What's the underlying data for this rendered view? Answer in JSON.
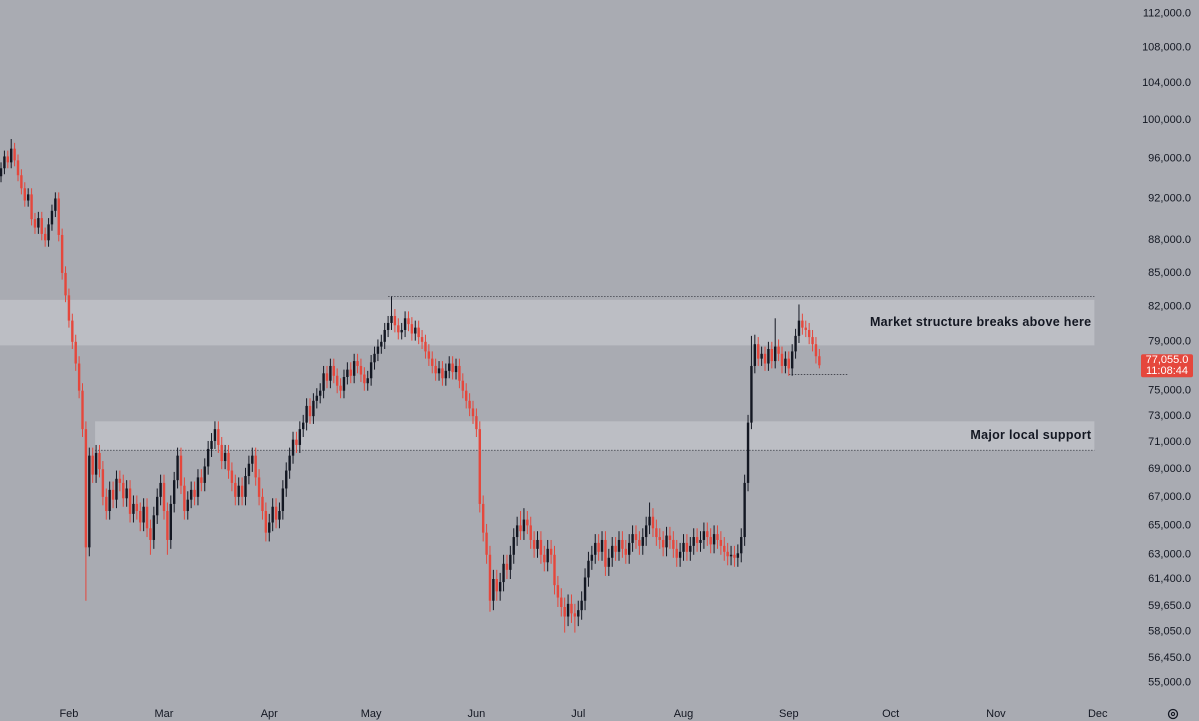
{
  "chart_data": {
    "type": "candlestick",
    "log_scale": true,
    "background": "#a9abb2",
    "up_color": "#131722",
    "down_color": "#e5473c",
    "zone_color": "#bcbec4",
    "x": [
      12,
      13,
      14,
      15,
      16,
      17,
      18,
      19,
      20,
      21,
      22,
      23,
      24,
      25,
      26,
      27,
      28,
      29,
      30,
      31,
      32,
      33,
      34,
      35,
      36,
      37,
      38,
      39,
      40,
      41,
      42,
      43,
      44,
      45,
      46,
      47,
      48,
      49,
      50,
      51,
      52,
      53,
      54,
      55,
      56,
      57,
      58,
      59,
      60,
      61,
      62,
      63,
      64,
      65,
      66,
      67,
      68,
      69,
      70,
      71,
      72,
      73,
      74,
      75,
      76,
      77,
      78,
      79,
      80,
      81,
      82,
      83,
      84,
      85,
      86,
      87,
      88,
      89,
      90,
      91,
      92,
      93,
      94,
      95,
      96,
      97,
      98,
      99,
      100,
      101,
      102,
      103,
      104,
      105,
      106,
      107,
      108,
      109,
      110,
      111,
      112,
      113,
      114,
      115,
      116,
      117,
      118,
      119,
      120,
      121,
      122,
      123,
      124,
      125,
      126,
      127,
      128,
      129,
      130,
      131,
      132,
      133,
      134,
      135,
      136,
      137,
      138,
      139,
      140,
      141,
      142,
      143,
      144,
      145,
      146,
      147,
      148,
      149,
      150,
      151,
      152,
      153,
      154,
      155,
      156,
      157,
      158,
      159,
      160,
      161,
      162,
      163,
      164,
      165,
      166,
      167,
      168,
      169,
      170,
      171,
      172,
      173,
      174,
      175,
      176,
      177,
      178,
      179,
      180,
      181,
      182,
      183,
      184,
      185,
      186,
      187,
      188,
      189,
      190,
      191,
      192,
      193,
      194,
      195,
      196,
      197,
      198,
      199,
      200,
      201,
      202,
      203,
      204,
      205,
      206,
      207,
      208,
      209,
      210,
      211,
      212,
      213,
      214,
      215,
      216,
      217,
      218,
      219,
      220,
      221,
      222,
      223,
      224,
      225,
      226,
      227,
      228,
      229,
      230,
      231,
      232,
      233,
      234,
      235,
      236,
      237,
      238,
      239,
      240,
      241,
      242,
      243,
      244,
      245,
      246,
      247,
      248,
      249,
      250,
      251,
      252,
      253
    ],
    "open": [
      94200,
      95000,
      96200,
      95600,
      97000,
      95800,
      94300,
      93000,
      91800,
      92400,
      90000,
      89200,
      90100,
      88600,
      88000,
      89500,
      90800,
      92000,
      88500,
      85000,
      83000,
      80800,
      79000,
      77200,
      75000,
      72000,
      63500,
      70000,
      68600,
      70200,
      69000,
      67000,
      66000,
      67500,
      66800,
      68300,
      68000,
      66900,
      67600,
      65800,
      66500,
      66000,
      65200,
      66300,
      64800,
      64000,
      65700,
      67000,
      68000,
      66000,
      64000,
      66500,
      68200,
      70000,
      67800,
      66000,
      66800,
      67500,
      67000,
      68400,
      68000,
      69200,
      70500,
      71100,
      72000,
      70800,
      69600,
      70200,
      68900,
      68000,
      67000,
      67800,
      67000,
      68500,
      69400,
      70000,
      68400,
      67000,
      66000,
      64500,
      65200,
      66300,
      65400,
      66000,
      67600,
      68900,
      70000,
      71200,
      70800,
      72000,
      72500,
      73800,
      73000,
      74200,
      74600,
      75000,
      76400,
      75800,
      77000,
      76200,
      75400,
      75000,
      76100,
      76700,
      76200,
      77400,
      77000,
      76300,
      75600,
      76000,
      77300,
      78000,
      78600,
      79000,
      80000,
      80600,
      81200,
      80400,
      79800,
      80000,
      81000,
      80500,
      79700,
      80200,
      79400,
      79000,
      78200,
      77600,
      77000,
      76400,
      76800,
      76000,
      76600,
      77200,
      76500,
      77000,
      75800,
      75000,
      74200,
      73600,
      73000,
      72000,
      66500,
      64500,
      63000,
      60000,
      61400,
      60600,
      61200,
      62400,
      62000,
      63000,
      64200,
      65000,
      64600,
      65400,
      65000,
      64000,
      63400,
      64000,
      63000,
      62500,
      63400,
      63000,
      61000,
      60200,
      59600,
      59000,
      59800,
      59200,
      59000,
      59400,
      60000,
      61500,
      62600,
      63000,
      63800,
      63200,
      64000,
      62200,
      62800,
      63600,
      63200,
      64000,
      63400,
      63000,
      63800,
      64400,
      64000,
      63600,
      64200,
      65000,
      65600,
      64800,
      64200,
      64000,
      63500,
      64300,
      64000,
      63400,
      62800,
      63200,
      63800,
      63200,
      63600,
      64200,
      63800,
      64000,
      64600,
      64200,
      63700,
      64400,
      64000,
      63600,
      63200,
      62900,
      63000,
      62800,
      63100,
      64200,
      68000,
      72500,
      77000,
      78800,
      77600,
      78000,
      77200,
      78400,
      77400,
      78600,
      78000,
      77000,
      77600,
      76800,
      78200,
      79500,
      80800,
      80200,
      80000,
      79400,
      78800,
      77800
    ],
    "high": [
      95600,
      96800,
      96800,
      98000,
      97600,
      96400,
      94900,
      93600,
      93000,
      93000,
      90600,
      90700,
      90700,
      89200,
      90100,
      91400,
      92600,
      92600,
      89100,
      85600,
      83600,
      81400,
      79600,
      77800,
      75600,
      72600,
      70600,
      70600,
      70800,
      70800,
      69600,
      67600,
      68100,
      68100,
      68900,
      68900,
      68600,
      68200,
      68200,
      67100,
      67100,
      66600,
      66900,
      66900,
      65400,
      66300,
      67600,
      68600,
      68600,
      66600,
      67100,
      68800,
      70600,
      70600,
      68400,
      67400,
      68100,
      68100,
      69000,
      69000,
      69800,
      71100,
      71700,
      72600,
      72600,
      71400,
      70800,
      70800,
      69500,
      68600,
      68400,
      68400,
      69100,
      70000,
      70600,
      70600,
      69000,
      67600,
      66600,
      65800,
      66900,
      66900,
      66600,
      68200,
      69500,
      70600,
      71800,
      71800,
      72600,
      73100,
      74400,
      74400,
      74800,
      75200,
      75600,
      77000,
      77000,
      77600,
      77600,
      76800,
      76000,
      76700,
      77300,
      77300,
      78000,
      78000,
      77600,
      76900,
      76600,
      77900,
      78600,
      79200,
      79600,
      80600,
      81200,
      82900,
      81800,
      81000,
      80600,
      81600,
      81600,
      81100,
      80800,
      80800,
      80000,
      79600,
      78800,
      78200,
      77600,
      77400,
      77400,
      77200,
      77800,
      77800,
      77600,
      77600,
      76400,
      75600,
      74800,
      74200,
      73600,
      72600,
      67100,
      65100,
      63600,
      62000,
      62000,
      61800,
      63000,
      63000,
      63600,
      64800,
      65600,
      66000,
      66200,
      66000,
      65600,
      64600,
      64600,
      64600,
      63600,
      64000,
      64000,
      63600,
      61600,
      60800,
      60200,
      60400,
      60400,
      59800,
      60000,
      60600,
      62100,
      63200,
      63600,
      64400,
      64400,
      64600,
      64600,
      63400,
      64200,
      64200,
      64600,
      64600,
      64000,
      64400,
      65000,
      65000,
      64600,
      64800,
      65600,
      66600,
      66200,
      65400,
      64800,
      64600,
      64900,
      64900,
      64600,
      64000,
      63800,
      64400,
      64400,
      64200,
      64800,
      64800,
      64600,
      65200,
      65200,
      64800,
      65000,
      65000,
      64600,
      64200,
      63800,
      63600,
      63600,
      63700,
      64800,
      68600,
      73100,
      79500,
      79600,
      79400,
      78600,
      78600,
      79000,
      79000,
      81000,
      79200,
      78600,
      78200,
      78200,
      78800,
      80100,
      82200,
      81400,
      80800,
      80600,
      80000,
      79400,
      78400
    ],
    "low": [
      93600,
      94400,
      95000,
      95000,
      95200,
      93700,
      92400,
      91200,
      91200,
      89400,
      88600,
      88600,
      88000,
      87400,
      87400,
      88900,
      90200,
      87900,
      84400,
      82400,
      80200,
      78400,
      76600,
      74400,
      71400,
      60000,
      62900,
      68000,
      68000,
      68400,
      66400,
      65400,
      65400,
      66200,
      66200,
      67400,
      66300,
      66300,
      65200,
      65200,
      65400,
      64600,
      64600,
      64200,
      63000,
      63400,
      65100,
      66400,
      65400,
      63000,
      63400,
      65900,
      67600,
      67200,
      65400,
      65400,
      66200,
      66400,
      66400,
      67400,
      67400,
      68600,
      69900,
      70500,
      70200,
      69000,
      69000,
      68300,
      67400,
      66400,
      66400,
      66400,
      66400,
      67900,
      68800,
      67800,
      66400,
      65400,
      63900,
      63900,
      64600,
      64800,
      64800,
      65400,
      67000,
      68300,
      69400,
      70200,
      70200,
      71400,
      71900,
      72400,
      72400,
      73600,
      74000,
      74400,
      75200,
      75200,
      75600,
      74800,
      74400,
      74400,
      75500,
      75600,
      75600,
      76400,
      75700,
      75000,
      75000,
      75400,
      76700,
      77400,
      78000,
      78400,
      79400,
      80000,
      79800,
      79200,
      79200,
      79400,
      79900,
      79100,
      79100,
      78800,
      78400,
      77600,
      77000,
      76400,
      75800,
      75800,
      75400,
      75400,
      76000,
      75900,
      75900,
      75200,
      74400,
      73600,
      73000,
      72400,
      71400,
      65900,
      63900,
      62400,
      59300,
      59400,
      60000,
      60000,
      60600,
      61400,
      61400,
      62400,
      63600,
      64000,
      64000,
      64400,
      63400,
      62800,
      62800,
      62400,
      61900,
      61900,
      62400,
      60400,
      59600,
      59000,
      58000,
      58400,
      58600,
      58000,
      58400,
      58800,
      59400,
      60900,
      62000,
      62400,
      62600,
      62600,
      61600,
      61600,
      62200,
      62600,
      62600,
      62800,
      62400,
      62400,
      63200,
      63400,
      63000,
      63000,
      63600,
      64400,
      64200,
      63600,
      63400,
      62900,
      62900,
      63400,
      62800,
      62200,
      62200,
      62600,
      62600,
      62600,
      63000,
      63200,
      63200,
      63400,
      63600,
      63100,
      63100,
      63400,
      63000,
      62600,
      62300,
      62300,
      62200,
      62200,
      62500,
      63600,
      67400,
      72000,
      76400,
      77000,
      77000,
      76600,
      76600,
      76800,
      76800,
      77400,
      76400,
      76400,
      76200,
      76200,
      77600,
      78900,
      79600,
      79400,
      78800,
      78200,
      77200,
      76800
    ],
    "close": [
      95000,
      96200,
      95600,
      97000,
      95800,
      94300,
      93000,
      91800,
      92400,
      90000,
      89200,
      90100,
      88600,
      88000,
      89500,
      90800,
      92000,
      88500,
      85000,
      83000,
      80800,
      79000,
      77200,
      75000,
      72000,
      63500,
      70000,
      68600,
      70200,
      69000,
      67000,
      66000,
      67500,
      66800,
      68300,
      68000,
      66900,
      67600,
      65800,
      66500,
      66000,
      65200,
      66300,
      64800,
      64000,
      65700,
      67000,
      68000,
      66000,
      64000,
      66500,
      68200,
      70000,
      67800,
      66000,
      66800,
      67500,
      67000,
      68400,
      68000,
      69200,
      70500,
      71100,
      72000,
      70800,
      69600,
      70200,
      68900,
      68000,
      67000,
      67800,
      67000,
      68500,
      69400,
      70000,
      68400,
      67000,
      66000,
      64500,
      65200,
      66300,
      65400,
      66000,
      67600,
      68900,
      70000,
      71200,
      70800,
      72000,
      72500,
      73800,
      73000,
      74200,
      74600,
      75000,
      76400,
      75800,
      77000,
      76200,
      75400,
      75000,
      76100,
      76700,
      76200,
      77400,
      77000,
      76300,
      75600,
      76000,
      77300,
      78000,
      78600,
      79000,
      80000,
      80600,
      81200,
      80400,
      79800,
      80000,
      81000,
      80500,
      79700,
      80200,
      79400,
      79000,
      78200,
      77600,
      77000,
      76400,
      76800,
      76000,
      76600,
      77200,
      76500,
      77000,
      75800,
      75000,
      74200,
      73600,
      73000,
      72000,
      66500,
      64500,
      63000,
      60000,
      61400,
      60600,
      61200,
      62400,
      62000,
      63000,
      64200,
      65000,
      64600,
      65400,
      65000,
      64000,
      63400,
      64000,
      63000,
      62500,
      63400,
      63000,
      61000,
      60200,
      59600,
      59000,
      59800,
      59200,
      59000,
      59400,
      60000,
      61500,
      62600,
      63000,
      63800,
      63200,
      64000,
      62200,
      62800,
      63600,
      63200,
      64000,
      63400,
      63000,
      63800,
      64400,
      64000,
      63600,
      64200,
      65000,
      65600,
      64800,
      64200,
      64000,
      63500,
      64300,
      64000,
      63400,
      62800,
      63200,
      63800,
      63200,
      63600,
      64200,
      63800,
      64000,
      64600,
      64200,
      63700,
      64400,
      64000,
      63600,
      63200,
      62900,
      63000,
      62800,
      63100,
      64200,
      68000,
      72500,
      77000,
      78800,
      77600,
      78000,
      77200,
      78400,
      77400,
      78600,
      78000,
      77000,
      77600,
      76800,
      78200,
      79500,
      80800,
      80200,
      80000,
      79400,
      78800,
      77800,
      77055
    ],
    "xlim": [
      11.7,
      338.6
    ],
    "xticks": [
      {
        "value": 32,
        "label": "Feb"
      },
      {
        "value": 60,
        "label": "Mar"
      },
      {
        "value": 91,
        "label": "Apr"
      },
      {
        "value": 121,
        "label": "May"
      },
      {
        "value": 152,
        "label": "Jun"
      },
      {
        "value": 182,
        "label": "Jul"
      },
      {
        "value": 213,
        "label": "Aug"
      },
      {
        "value": 244,
        "label": "Sep"
      },
      {
        "value": 274,
        "label": "Oct"
      },
      {
        "value": 305,
        "label": "Nov"
      },
      {
        "value": 335,
        "label": "Dec"
      }
    ],
    "ylim": [
      52800,
      113600
    ],
    "yticks": [
      {
        "value": 112000,
        "label": "112,000.0"
      },
      {
        "value": 108000,
        "label": "108,000.0"
      },
      {
        "value": 104000,
        "label": "104,000.0"
      },
      {
        "value": 100000,
        "label": "100,000.0"
      },
      {
        "value": 96000,
        "label": "96,000.0"
      },
      {
        "value": 92000,
        "label": "92,000.0"
      },
      {
        "value": 88000,
        "label": "88,000.0"
      },
      {
        "value": 85000,
        "label": "85,000.0"
      },
      {
        "value": 82000,
        "label": "82,000.0"
      },
      {
        "value": 79000,
        "label": "79,000.0"
      },
      {
        "value": 75000,
        "label": "75,000.0"
      },
      {
        "value": 73000,
        "label": "73,000.0"
      },
      {
        "value": 71000,
        "label": "71,000.0"
      },
      {
        "value": 69000,
        "label": "69,000.0"
      },
      {
        "value": 67000,
        "label": "67,000.0"
      },
      {
        "value": 65000,
        "label": "65,000.0"
      },
      {
        "value": 63000,
        "label": "63,000.0"
      },
      {
        "value": 61400,
        "label": "61,400.0"
      },
      {
        "value": 59650,
        "label": "59,650.0"
      },
      {
        "value": 58050,
        "label": "58,050.0"
      },
      {
        "value": 56450,
        "label": "56,450.0"
      },
      {
        "value": 55000,
        "label": "55,000.0"
      }
    ],
    "zones": [
      {
        "label": "Market structure breaks above here",
        "y": [
          78700,
          82600
        ],
        "x": [
          11.7,
          334
        ]
      },
      {
        "label": "Major local support",
        "y": [
          70400,
          72600
        ],
        "x": [
          39.7,
          334
        ]
      }
    ],
    "levels": [
      {
        "value": 82900,
        "x": [
          126,
          334
        ]
      },
      {
        "value": 70400,
        "x": [
          39.7,
          334
        ]
      },
      {
        "value": 76300,
        "x": [
          244,
          261.4
        ]
      }
    ],
    "last_price": {
      "value": 77055,
      "label": "77,055.0"
    },
    "countdown": "11:08:44"
  }
}
